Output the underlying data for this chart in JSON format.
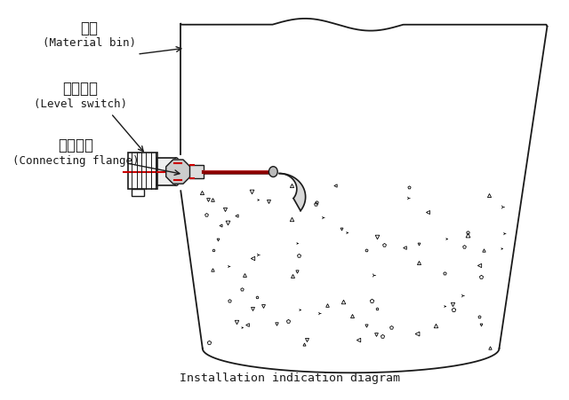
{
  "title": "Installation indication diagram",
  "label_bin_cn": "料仓",
  "label_bin_en": "(Material bin)",
  "label_switch_cn": "料位开关",
  "label_switch_en": "(Level switch)",
  "label_flange_cn": "连接法兰",
  "label_flange_en": "(Connecting flange)",
  "bg_color": "#ffffff",
  "line_color": "#1a1a1a",
  "red_color": "#cc0000"
}
